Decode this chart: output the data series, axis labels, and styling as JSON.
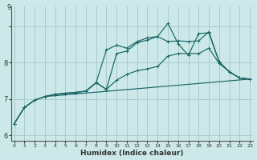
{
  "xlabel": "Humidex (Indice chaleur)",
  "background_color": "#cce8e8",
  "grid_color": "#aacccc",
  "line_color": "#1a6666",
  "xlim": [
    -0.3,
    23.3
  ],
  "ylim": [
    5.85,
    9.55
  ],
  "ytick_vals": [
    6,
    7,
    8,
    9
  ],
  "xtick_vals": [
    0,
    1,
    2,
    3,
    4,
    5,
    6,
    7,
    8,
    9,
    10,
    11,
    12,
    13,
    14,
    15,
    16,
    17,
    18,
    19,
    20,
    21,
    22,
    23
  ],
  "line1_x": [
    0,
    1,
    2,
    3,
    4,
    5,
    6,
    7,
    8,
    9,
    10,
    11,
    12,
    13,
    14,
    15,
    16,
    17,
    18,
    19,
    20,
    21,
    22,
    23
  ],
  "line1_y": [
    6.32,
    6.77,
    6.97,
    7.07,
    7.13,
    7.16,
    7.18,
    7.22,
    7.45,
    7.27,
    7.52,
    7.68,
    7.78,
    7.83,
    7.9,
    8.18,
    8.25,
    8.25,
    8.25,
    8.4,
    7.98,
    7.75,
    7.58,
    7.55
  ],
  "line2_x": [
    0,
    1,
    2,
    3,
    4,
    5,
    6,
    7,
    8,
    9,
    10,
    11,
    12,
    13,
    14,
    15,
    16,
    17,
    18,
    19,
    20,
    21,
    22,
    23
  ],
  "line2_y": [
    6.32,
    6.77,
    6.97,
    7.07,
    7.13,
    7.16,
    7.18,
    7.22,
    7.45,
    8.35,
    8.48,
    8.4,
    8.58,
    8.68,
    8.72,
    9.08,
    8.52,
    8.2,
    8.8,
    8.82,
    8.02,
    7.75,
    7.58,
    7.55
  ],
  "line3_x": [
    0,
    1,
    2,
    3,
    4,
    5,
    6,
    7,
    8,
    9,
    10,
    11,
    12,
    13,
    14,
    15,
    16,
    17,
    18,
    19,
    20,
    21,
    22,
    23
  ],
  "line3_y": [
    6.32,
    6.77,
    6.97,
    7.07,
    7.13,
    7.16,
    7.18,
    7.22,
    7.45,
    7.27,
    8.25,
    8.32,
    8.55,
    8.62,
    8.72,
    8.58,
    8.6,
    8.58,
    8.6,
    8.85,
    8.02,
    7.75,
    7.58,
    7.55
  ],
  "line4_x": [
    3,
    23
  ],
  "line4_y": [
    7.07,
    7.55
  ]
}
